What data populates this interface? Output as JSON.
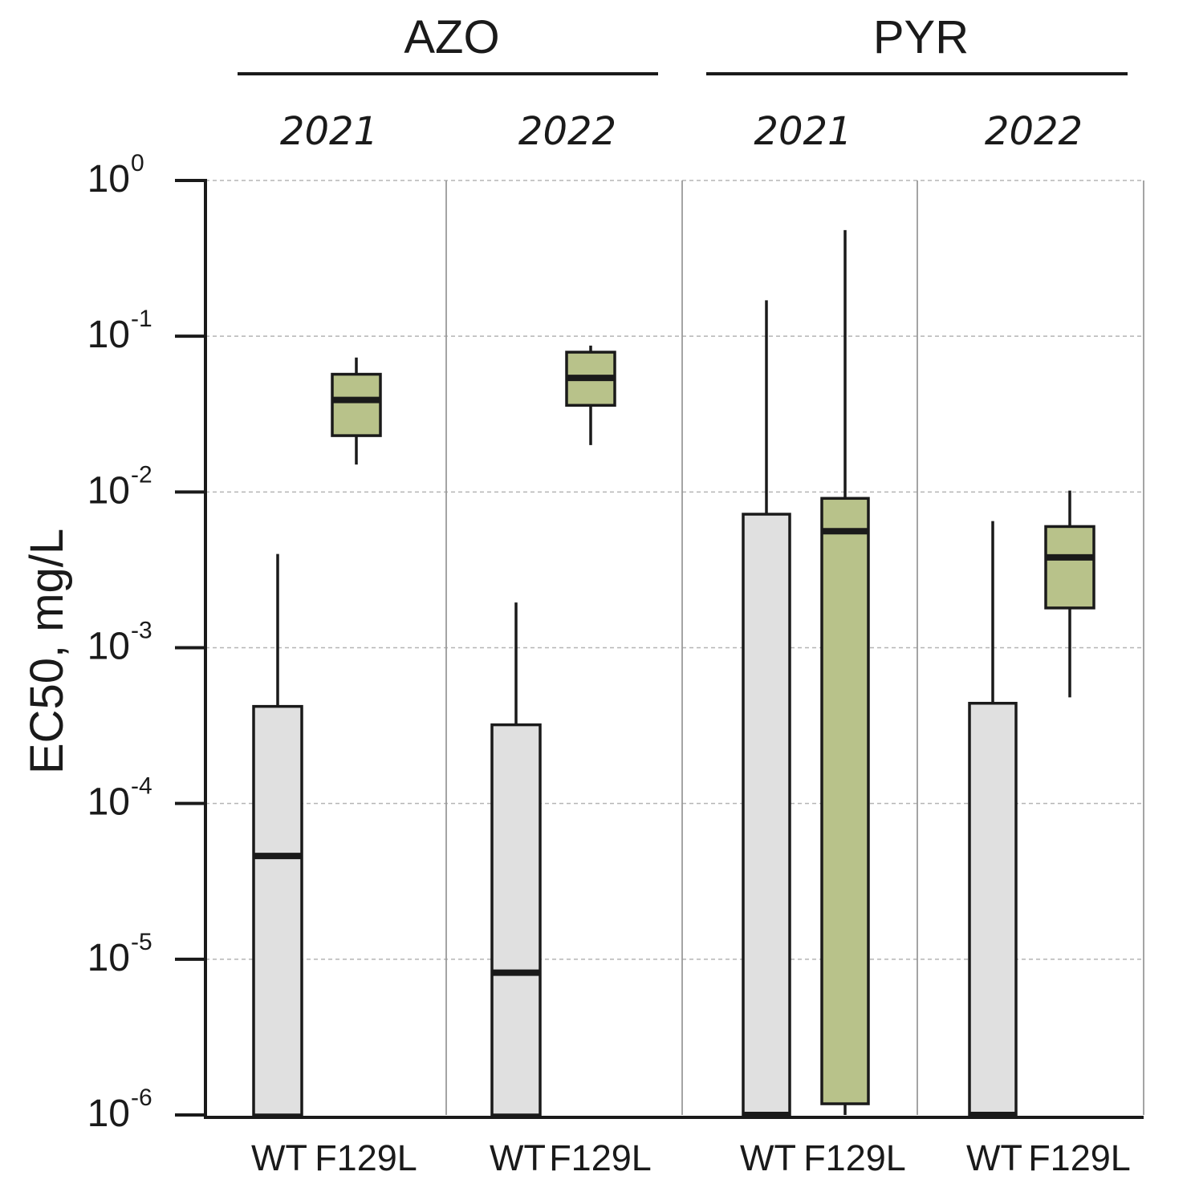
{
  "chart_data": {
    "type": "box",
    "ylabel": "EC50, mg/L",
    "yscale": "log",
    "ylim": [
      1e-06,
      1
    ],
    "y_ticks": [
      {
        "base": "10",
        "exp": "-6"
      },
      {
        "base": "10",
        "exp": "-5"
      },
      {
        "base": "10",
        "exp": "-4"
      },
      {
        "base": "10",
        "exp": "-3"
      },
      {
        "base": "10",
        "exp": "-2"
      },
      {
        "base": "10",
        "exp": "-1"
      },
      {
        "base": "10",
        "exp": "0"
      }
    ],
    "compounds": [
      "AZO",
      "PYR"
    ],
    "panels": [
      {
        "compound": "AZO",
        "year": "2021",
        "boxes": [
          {
            "genotype": "WT",
            "min": 1e-06,
            "q1": 1e-06,
            "median": 4.6e-05,
            "q3": 0.00042,
            "max": 0.004
          },
          {
            "genotype": "F129L",
            "min": 0.015,
            "q1": 0.023,
            "median": 0.039,
            "q3": 0.057,
            "max": 0.073
          }
        ]
      },
      {
        "compound": "AZO",
        "year": "2022",
        "boxes": [
          {
            "genotype": "WT",
            "min": 1e-06,
            "q1": 1e-06,
            "median": 8.2e-06,
            "q3": 0.00032,
            "max": 0.00195
          },
          {
            "genotype": "F129L",
            "min": 0.02,
            "q1": 0.036,
            "median": 0.054,
            "q3": 0.079,
            "max": 0.087
          }
        ]
      },
      {
        "compound": "PYR",
        "year": "2021",
        "boxes": [
          {
            "genotype": "WT",
            "min": 1e-06,
            "q1": 1e-06,
            "median": 1e-06,
            "q3": 0.0072,
            "max": 0.17
          },
          {
            "genotype": "F129L",
            "min": 1e-06,
            "q1": 1.18e-06,
            "median": 0.0056,
            "q3": 0.0091,
            "max": 0.48
          }
        ]
      },
      {
        "compound": "PYR",
        "year": "2022",
        "boxes": [
          {
            "genotype": "WT",
            "min": 1e-06,
            "q1": 1e-06,
            "median": 1e-06,
            "q3": 0.00044,
            "max": 0.0065
          },
          {
            "genotype": "F129L",
            "min": 0.00048,
            "q1": 0.0018,
            "median": 0.0038,
            "q3": 0.006,
            "max": 0.0102
          }
        ]
      }
    ],
    "colors": {
      "WT": "#e0e0e0",
      "F129L": "#b8c28a",
      "stroke": "#1a1a1a",
      "grid": "#b5b5b5",
      "separator": "#9a9a9a"
    },
    "grid": true
  }
}
